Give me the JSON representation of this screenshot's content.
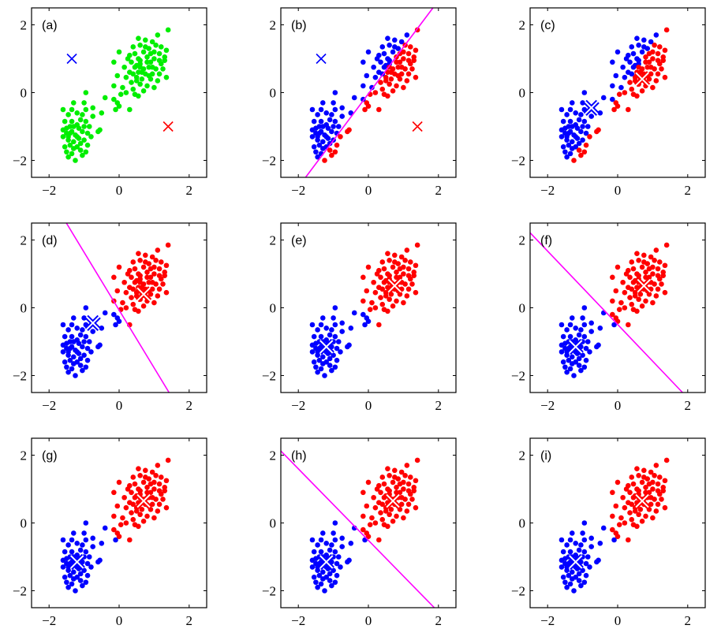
{
  "chart_data": {
    "type": "scatter",
    "layout": "3x3 grid",
    "xlim": [
      -2.5,
      2.5
    ],
    "ylim": [
      -2.5,
      2.5
    ],
    "xticks": [
      -2,
      0,
      2
    ],
    "yticks": [
      -2,
      0,
      2
    ],
    "xtick_labels": [
      "−2",
      "0",
      "2"
    ],
    "ytick_labels": [
      "−2",
      "0",
      "2"
    ],
    "colors": {
      "unassigned": "#00ee00",
      "cluster1": "#0000ff",
      "cluster2": "#ff0000",
      "boundary": "#ff00ff",
      "marker_core": "#ffffff"
    },
    "points": [
      [
        1.4,
        1.85
      ],
      [
        1.1,
        1.7
      ],
      [
        0.55,
        1.6
      ],
      [
        0.75,
        1.55
      ],
      [
        0.95,
        1.5
      ],
      [
        0.4,
        1.35
      ],
      [
        0.6,
        1.4
      ],
      [
        1.05,
        1.4
      ],
      [
        1.2,
        1.35
      ],
      [
        1.35,
        1.25
      ],
      [
        0.85,
        1.3
      ],
      [
        0.0,
        1.2
      ],
      [
        0.45,
        1.15
      ],
      [
        0.7,
        1.2
      ],
      [
        1.15,
        1.15
      ],
      [
        1.3,
        1.05
      ],
      [
        0.25,
        1.0
      ],
      [
        0.55,
        1.0
      ],
      [
        0.8,
        1.05
      ],
      [
        1.0,
        1.0
      ],
      [
        -0.15,
        0.9
      ],
      [
        0.35,
        0.9
      ],
      [
        0.6,
        0.85
      ],
      [
        0.9,
        0.9
      ],
      [
        1.2,
        0.85
      ],
      [
        0.15,
        0.75
      ],
      [
        0.45,
        0.75
      ],
      [
        0.7,
        0.7
      ],
      [
        0.85,
        0.75
      ],
      [
        1.05,
        0.7
      ],
      [
        1.25,
        0.7
      ],
      [
        0.3,
        0.6
      ],
      [
        0.55,
        0.6
      ],
      [
        0.75,
        0.55
      ],
      [
        0.95,
        0.55
      ],
      [
        1.15,
        0.55
      ],
      [
        -0.05,
        0.5
      ],
      [
        0.2,
        0.45
      ],
      [
        0.5,
        0.45
      ],
      [
        0.65,
        0.4
      ],
      [
        0.9,
        0.4
      ],
      [
        1.1,
        0.35
      ],
      [
        1.35,
        0.45
      ],
      [
        0.35,
        0.3
      ],
      [
        0.6,
        0.25
      ],
      [
        0.8,
        0.2
      ],
      [
        1.0,
        0.15
      ],
      [
        -0.15,
        0.2
      ],
      [
        0.1,
        0.15
      ],
      [
        0.4,
        0.1
      ],
      [
        0.7,
        0.05
      ],
      [
        0.2,
        0.0
      ],
      [
        0.45,
        -0.05
      ],
      [
        0.55,
        -0.1
      ],
      [
        0.05,
        -0.05
      ],
      [
        0.6,
        0.95
      ],
      [
        0.5,
        0.8
      ],
      [
        0.8,
        0.9
      ],
      [
        0.95,
        0.75
      ],
      [
        0.65,
        0.6
      ],
      [
        0.4,
        0.55
      ],
      [
        1.0,
        1.2
      ],
      [
        0.75,
        1.35
      ],
      [
        1.15,
        0.95
      ],
      [
        0.85,
        0.5
      ],
      [
        0.6,
        0.75
      ],
      [
        0.5,
        0.35
      ],
      [
        0.3,
        1.1
      ],
      [
        1.3,
        0.95
      ],
      [
        0.9,
        1.15
      ],
      [
        -0.95,
        0.0
      ],
      [
        -0.4,
        -0.15
      ],
      [
        -0.15,
        -0.2
      ],
      [
        -0.1,
        -0.5
      ],
      [
        0.0,
        -0.4
      ],
      [
        -0.05,
        -0.3
      ],
      [
        0.3,
        -0.5
      ],
      [
        -0.5,
        -0.6
      ],
      [
        -0.75,
        -0.45
      ],
      [
        -1.6,
        -0.5
      ],
      [
        -1.3,
        -0.3
      ],
      [
        -1.0,
        -0.3
      ],
      [
        -1.45,
        -0.65
      ],
      [
        -1.2,
        -0.6
      ],
      [
        -0.95,
        -0.5
      ],
      [
        -0.75,
        -0.7
      ],
      [
        -1.55,
        -0.85
      ],
      [
        -1.35,
        -0.85
      ],
      [
        -1.1,
        -0.8
      ],
      [
        -0.95,
        -0.85
      ],
      [
        -1.5,
        -1.05
      ],
      [
        -1.3,
        -1.0
      ],
      [
        -1.15,
        -1.05
      ],
      [
        -1.4,
        -1.2
      ],
      [
        -1.25,
        -1.25
      ],
      [
        -1.05,
        -1.15
      ],
      [
        -0.9,
        -1.2
      ],
      [
        -0.55,
        -1.1
      ],
      [
        -0.6,
        -1.15
      ],
      [
        -1.6,
        -1.3
      ],
      [
        -1.45,
        -1.4
      ],
      [
        -1.3,
        -1.45
      ],
      [
        -1.15,
        -1.35
      ],
      [
        -1.0,
        -1.4
      ],
      [
        -0.8,
        -1.3
      ],
      [
        -1.55,
        -1.6
      ],
      [
        -1.4,
        -1.55
      ],
      [
        -1.2,
        -1.6
      ],
      [
        -0.9,
        -1.55
      ],
      [
        -1.5,
        -1.75
      ],
      [
        -1.35,
        -1.8
      ],
      [
        -1.1,
        -1.7
      ],
      [
        -1.45,
        -1.9
      ],
      [
        -1.25,
        -2.0
      ],
      [
        -1.05,
        -1.85
      ],
      [
        -1.35,
        -1.15
      ],
      [
        -1.2,
        -0.95
      ],
      [
        -1.5,
        -1.2
      ],
      [
        -1.0,
        -1.0
      ],
      [
        -1.3,
        -1.65
      ],
      [
        -1.1,
        -1.5
      ],
      [
        -0.95,
        -1.75
      ],
      [
        -1.4,
        -1.0
      ],
      [
        -1.6,
        -1.1
      ],
      [
        -1.2,
        -1.3
      ],
      [
        -1.35,
        -0.5
      ],
      [
        -1.05,
        -0.65
      ],
      [
        -0.85,
        -1.0
      ],
      [
        -1.45,
        -1.3
      ]
    ],
    "panels": [
      {
        "label": "(a)",
        "centroids": [
          [
            -1.35,
            1.0
          ],
          [
            1.4,
            -1.0
          ]
        ],
        "marker": "plain",
        "assign_by": null,
        "boundary": false
      },
      {
        "label": "(b)",
        "centroids": [
          [
            -1.35,
            1.0
          ],
          [
            1.4,
            -1.0
          ]
        ],
        "marker": "plain",
        "assign_by": [
          [
            -1.35,
            1.0
          ],
          [
            1.4,
            -1.0
          ]
        ],
        "boundary": true
      },
      {
        "label": "(c)",
        "centroids": [
          [
            -0.75,
            -0.45
          ],
          [
            0.7,
            0.4
          ]
        ],
        "marker": "bold",
        "assign_by": [
          [
            -1.35,
            1.0
          ],
          [
            1.4,
            -1.0
          ]
        ],
        "boundary": false
      },
      {
        "label": "(d)",
        "centroids": [
          [
            -0.75,
            -0.45
          ],
          [
            0.7,
            0.4
          ]
        ],
        "marker": "bold",
        "assign_by": [
          [
            -0.75,
            -0.45
          ],
          [
            0.7,
            0.4
          ]
        ],
        "boundary": true
      },
      {
        "label": "(e)",
        "centroids": [
          [
            -1.2,
            -1.15
          ],
          [
            0.75,
            0.65
          ]
        ],
        "marker": "bold",
        "assign_by": [
          [
            -0.75,
            -0.45
          ],
          [
            0.7,
            0.4
          ]
        ],
        "boundary": false
      },
      {
        "label": "(f)",
        "centroids": [
          [
            -1.2,
            -1.15
          ],
          [
            0.75,
            0.65
          ]
        ],
        "marker": "bold",
        "assign_by": [
          [
            -1.2,
            -1.15
          ],
          [
            0.75,
            0.65
          ]
        ],
        "boundary": true
      },
      {
        "label": "(g)",
        "centroids": [
          [
            -1.2,
            -1.15
          ],
          [
            0.7,
            0.65
          ]
        ],
        "marker": "bold",
        "assign_by": [
          [
            -1.2,
            -1.15
          ],
          [
            0.75,
            0.65
          ]
        ],
        "boundary": false
      },
      {
        "label": "(h)",
        "centroids": [
          [
            -1.2,
            -1.15
          ],
          [
            0.7,
            0.65
          ]
        ],
        "marker": "bold",
        "assign_by": [
          [
            -1.2,
            -1.15
          ],
          [
            0.7,
            0.65
          ]
        ],
        "boundary": true
      },
      {
        "label": "(i)",
        "centroids": [
          [
            -1.2,
            -1.15
          ],
          [
            0.7,
            0.65
          ]
        ],
        "marker": "bold",
        "assign_by": [
          [
            -1.2,
            -1.15
          ],
          [
            0.7,
            0.65
          ]
        ],
        "boundary": false
      }
    ]
  }
}
